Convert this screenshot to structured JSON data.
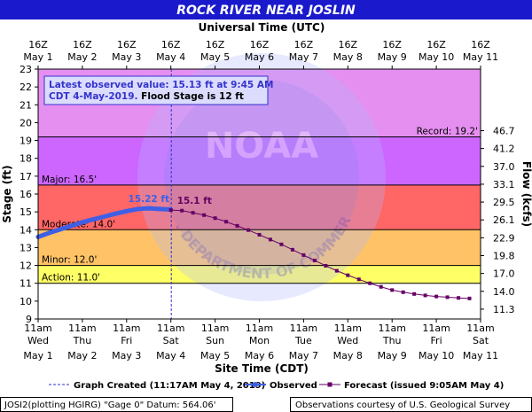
{
  "header": {
    "title": "ROCK RIVER NEAR JOSLIN"
  },
  "top_axis": {
    "label": "Universal Time (UTC)",
    "ticks": [
      {
        "l1": "16Z",
        "l2": "May 1"
      },
      {
        "l1": "16Z",
        "l2": "May 2"
      },
      {
        "l1": "16Z",
        "l2": "May 3"
      },
      {
        "l1": "16Z",
        "l2": "May 4"
      },
      {
        "l1": "16Z",
        "l2": "May 5"
      },
      {
        "l1": "16Z",
        "l2": "May 6"
      },
      {
        "l1": "16Z",
        "l2": "May 7"
      },
      {
        "l1": "16Z",
        "l2": "May 8"
      },
      {
        "l1": "16Z",
        "l2": "May 9"
      },
      {
        "l1": "16Z",
        "l2": "May 10"
      },
      {
        "l1": "16Z",
        "l2": "May 11"
      }
    ]
  },
  "bottom_axis": {
    "label": "Site Time (CDT)",
    "ticks": [
      {
        "l1": "11am",
        "l2": "Wed",
        "l3": "May 1"
      },
      {
        "l1": "11am",
        "l2": "Thu",
        "l3": "May 2"
      },
      {
        "l1": "11am",
        "l2": "Fri",
        "l3": "May 3"
      },
      {
        "l1": "11am",
        "l2": "Sat",
        "l3": "May 4"
      },
      {
        "l1": "11am",
        "l2": "Sun",
        "l3": "May 5"
      },
      {
        "l1": "11am",
        "l2": "Mon",
        "l3": "May 6"
      },
      {
        "l1": "11am",
        "l2": "Tue",
        "l3": "May 7"
      },
      {
        "l1": "11am",
        "l2": "Wed",
        "l3": "May 8"
      },
      {
        "l1": "11am",
        "l2": "Thu",
        "l3": "May 9"
      },
      {
        "l1": "11am",
        "l2": "Fri",
        "l3": "May 10"
      },
      {
        "l1": "11am",
        "l2": "Sat",
        "l3": "May 11"
      }
    ]
  },
  "chart_data": {
    "type": "line",
    "title": "ROCK RIVER NEAR JOSLIN",
    "xlabel": "Site Time (CDT)",
    "x_range_days": [
      0,
      10
    ],
    "ylabel": "Stage (ft)",
    "ylim": [
      9,
      23
    ],
    "yticks": [
      9,
      10,
      11,
      12,
      13,
      14,
      15,
      16,
      17,
      18,
      19,
      20,
      21,
      22,
      23
    ],
    "y2label": "Flow (kcfs)",
    "y2_ticks": [
      {
        "stage": 9.55,
        "label": "11.3"
      },
      {
        "stage": 10.55,
        "label": "14.0"
      },
      {
        "stage": 11.55,
        "label": "17.0"
      },
      {
        "stage": 12.55,
        "label": "19.8"
      },
      {
        "stage": 13.55,
        "label": "22.9"
      },
      {
        "stage": 14.55,
        "label": "26.1"
      },
      {
        "stage": 15.55,
        "label": "29.5"
      },
      {
        "stage": 16.55,
        "label": "33.1"
      },
      {
        "stage": 17.55,
        "label": "37.0"
      },
      {
        "stage": 18.55,
        "label": "41.2"
      },
      {
        "stage": 19.55,
        "label": "46.7"
      }
    ],
    "grid": false,
    "bands": [
      {
        "name": "Record",
        "from": 19.2,
        "to": 23,
        "color": "#e58ff0"
      },
      {
        "name": "Major",
        "from": 16.5,
        "to": 19.2,
        "color": "#cc66ff"
      },
      {
        "name": "Moderate",
        "from": 14.0,
        "to": 16.5,
        "color": "#ff6666"
      },
      {
        "name": "Minor",
        "from": 12.0,
        "to": 14.0,
        "color": "#ffc266"
      },
      {
        "name": "Action",
        "from": 11.0,
        "to": 12.0,
        "color": "#ffff66"
      },
      {
        "name": "Normal",
        "from": 9,
        "to": 11.0,
        "color": "#ffffff"
      }
    ],
    "flood_lines": [
      {
        "label": "Record: 19.2'",
        "stage": 19.2,
        "side": "right"
      },
      {
        "label": "Major: 16.5'",
        "stage": 16.5,
        "side": "left"
      },
      {
        "label": "Moderate: 14.0'",
        "stage": 14.0,
        "side": "left"
      },
      {
        "label": "Minor: 12.0'",
        "stage": 12.0,
        "side": "left"
      },
      {
        "label": "Action: 11.0'",
        "stage": 11.0,
        "side": "left"
      }
    ],
    "graph_created_day": 3.01,
    "series": [
      {
        "name": "Observed",
        "color": "#3f5fe6",
        "x": [
          0.0,
          0.25,
          0.5,
          0.75,
          1.0,
          1.25,
          1.5,
          1.75,
          2.0,
          2.25,
          2.5,
          2.75,
          3.0
        ],
        "y": [
          13.6,
          13.82,
          14.02,
          14.22,
          14.42,
          14.58,
          14.74,
          14.9,
          15.04,
          15.16,
          15.2,
          15.16,
          15.13
        ]
      },
      {
        "name": "Forecast (issued 9:05AM May 4)",
        "color": "#660066",
        "x": [
          3.0,
          3.25,
          3.5,
          3.75,
          4.0,
          4.25,
          4.5,
          4.75,
          5.0,
          5.25,
          5.5,
          5.75,
          6.0,
          6.25,
          6.5,
          6.75,
          7.0,
          7.25,
          7.5,
          7.75,
          8.0,
          8.25,
          8.5,
          8.75,
          9.0,
          9.25,
          9.5,
          9.75
        ],
        "y": [
          15.1,
          15.07,
          14.95,
          14.82,
          14.65,
          14.45,
          14.22,
          13.98,
          13.72,
          13.45,
          13.18,
          12.88,
          12.58,
          12.28,
          11.98,
          11.7,
          11.45,
          11.22,
          11.0,
          10.8,
          10.62,
          10.5,
          10.4,
          10.32,
          10.26,
          10.22,
          10.18,
          10.15
        ]
      }
    ],
    "annotations": [
      {
        "label": "15.22 ft",
        "x": 2.5,
        "y": 15.2,
        "color": "#3f5fe6"
      },
      {
        "label": "15.1 ft",
        "x": 3.1,
        "y": 15.1,
        "color": "#660066"
      }
    ]
  },
  "info_box": {
    "line1": "Latest observed value: 15.13 ft at 9:45 AM",
    "line2a": "CDT 4-May-2019.",
    "line2b": " Flood Stage is 12 ft"
  },
  "watermark": {
    "noaa": "NOAA",
    "arc_text": "U.S. DEPARTMENT OF COMMERCE"
  },
  "legend": {
    "graph_created": "Graph Created (11:17AM May 4, 2019)",
    "observed": "Observed",
    "forecast": "Forecast (issued 9:05AM May 4)"
  },
  "footer": {
    "left": "JOSI2(plotting HGIRG) \"Gage 0\" Datum: 564.06'",
    "right": "Observations courtesy of U.S. Geological Survey"
  },
  "colors": {
    "title_bg": "#1a1acc",
    "title_text": "#ffffff",
    "observed": "#3f5fe6",
    "forecast": "#660066",
    "info_text": "#3333cc"
  }
}
